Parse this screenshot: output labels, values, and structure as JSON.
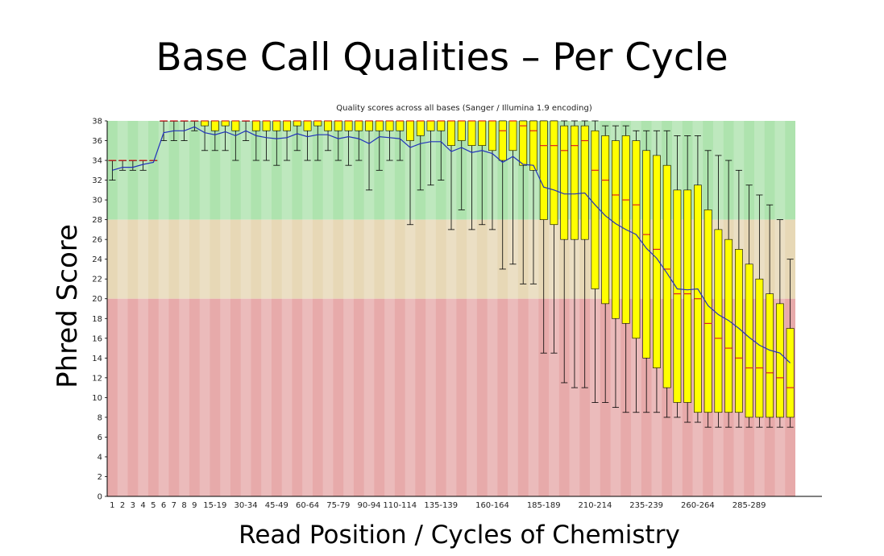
{
  "slide": {
    "title": "Base Call Qualities – Per Cycle",
    "y_axis_title": "Phred Score",
    "x_axis_title": "Read Position / Cycles of Chemistry"
  },
  "chart_data": {
    "type": "box",
    "title": "Quality scores across all bases (Sanger / Illumina 1.9 encoding)",
    "ylim": [
      0,
      38
    ],
    "y_ticks": [
      0,
      2,
      4,
      6,
      8,
      10,
      12,
      14,
      16,
      18,
      20,
      22,
      24,
      26,
      28,
      30,
      32,
      34,
      36,
      38
    ],
    "x_tick_labels": [
      "1",
      "2",
      "3",
      "4",
      "5",
      "6",
      "7",
      "8",
      "9",
      "15-19",
      "30-34",
      "45-49",
      "60-64",
      "75-79",
      "90-94",
      "110-114",
      "135-139",
      "160-164",
      "185-189",
      "210-214",
      "235-239",
      "260-264",
      "285-289"
    ],
    "x_tick_positions": [
      0,
      1,
      2,
      3,
      4,
      5,
      6,
      7,
      8,
      10,
      13,
      16,
      19,
      22,
      25,
      28,
      32,
      37,
      42,
      47,
      52,
      57,
      62
    ],
    "quality_bands": [
      {
        "from": 28,
        "to": 38,
        "color": "#aee3ae"
      },
      {
        "from": 20,
        "to": 28,
        "color": "#e7d8b6"
      },
      {
        "from": 0,
        "to": 20,
        "color": "#e7aaaa"
      }
    ],
    "colors": {
      "box": "#ffff00",
      "median": "#dd2222",
      "mean_line": "#2233bb",
      "whisker": "#000000"
    },
    "boxes": [
      {
        "low": 32,
        "q1": 34,
        "median": 34,
        "q3": 34,
        "high": 34,
        "mean": 33.0
      },
      {
        "low": 33,
        "q1": 34,
        "median": 34,
        "q3": 34,
        "high": 34,
        "mean": 33.3
      },
      {
        "low": 33,
        "q1": 34,
        "median": 34,
        "q3": 34,
        "high": 34,
        "mean": 33.3
      },
      {
        "low": 33,
        "q1": 34,
        "median": 34,
        "q3": 34,
        "high": 34,
        "mean": 33.6
      },
      {
        "low": 34,
        "q1": 34,
        "median": 34,
        "q3": 34,
        "high": 34,
        "mean": 33.8
      },
      {
        "low": 36,
        "q1": 38,
        "median": 38,
        "q3": 38,
        "high": 38,
        "mean": 36.8
      },
      {
        "low": 36,
        "q1": 38,
        "median": 38,
        "q3": 38,
        "high": 38,
        "mean": 37.0
      },
      {
        "low": 36,
        "q1": 38,
        "median": 38,
        "q3": 38,
        "high": 38,
        "mean": 37.0
      },
      {
        "low": 37,
        "q1": 38,
        "median": 38,
        "q3": 38,
        "high": 38,
        "mean": 37.4
      },
      {
        "low": 35,
        "q1": 37.5,
        "median": 38,
        "q3": 38,
        "high": 38,
        "mean": 36.8
      },
      {
        "low": 35,
        "q1": 37,
        "median": 38,
        "q3": 38,
        "high": 38,
        "mean": 36.6
      },
      {
        "low": 35,
        "q1": 37.5,
        "median": 38,
        "q3": 38,
        "high": 38,
        "mean": 36.9
      },
      {
        "low": 34,
        "q1": 37,
        "median": 38,
        "q3": 38,
        "high": 38,
        "mean": 36.5
      },
      {
        "low": 36,
        "q1": 38,
        "median": 38,
        "q3": 38,
        "high": 38,
        "mean": 37.0
      },
      {
        "low": 34,
        "q1": 37,
        "median": 38,
        "q3": 38,
        "high": 38,
        "mean": 36.5
      },
      {
        "low": 34,
        "q1": 37,
        "median": 38,
        "q3": 38,
        "high": 38,
        "mean": 36.3
      },
      {
        "low": 33.5,
        "q1": 37,
        "median": 38,
        "q3": 38,
        "high": 38,
        "mean": 36.2
      },
      {
        "low": 34,
        "q1": 37,
        "median": 38,
        "q3": 38,
        "high": 38,
        "mean": 36.3
      },
      {
        "low": 35,
        "q1": 37.5,
        "median": 38,
        "q3": 38,
        "high": 38,
        "mean": 36.7
      },
      {
        "low": 34,
        "q1": 37,
        "median": 38,
        "q3": 38,
        "high": 38,
        "mean": 36.4
      },
      {
        "low": 34,
        "q1": 37.5,
        "median": 38,
        "q3": 38,
        "high": 38,
        "mean": 36.6
      },
      {
        "low": 35,
        "q1": 37,
        "median": 38,
        "q3": 38,
        "high": 38,
        "mean": 36.6
      },
      {
        "low": 34,
        "q1": 37,
        "median": 38,
        "q3": 38,
        "high": 38,
        "mean": 36.2
      },
      {
        "low": 33.5,
        "q1": 37,
        "median": 38,
        "q3": 38,
        "high": 38,
        "mean": 36.4
      },
      {
        "low": 34,
        "q1": 37,
        "median": 38,
        "q3": 38,
        "high": 38,
        "mean": 36.2
      },
      {
        "low": 31,
        "q1": 37,
        "median": 38,
        "q3": 38,
        "high": 38,
        "mean": 35.7
      },
      {
        "low": 33,
        "q1": 37,
        "median": 38,
        "q3": 38,
        "high": 38,
        "mean": 36.4
      },
      {
        "low": 34,
        "q1": 37,
        "median": 38,
        "q3": 38,
        "high": 38,
        "mean": 36.3
      },
      {
        "low": 34,
        "q1": 37,
        "median": 38,
        "q3": 38,
        "high": 38,
        "mean": 36.2
      },
      {
        "low": 27.5,
        "q1": 36,
        "median": 38,
        "q3": 38,
        "high": 38,
        "mean": 35.3
      },
      {
        "low": 31,
        "q1": 36.5,
        "median": 38,
        "q3": 38,
        "high": 38,
        "mean": 35.7
      },
      {
        "low": 31.5,
        "q1": 37,
        "median": 38,
        "q3": 38,
        "high": 38,
        "mean": 35.9
      },
      {
        "low": 32,
        "q1": 37,
        "median": 38,
        "q3": 38,
        "high": 38,
        "mean": 35.9
      },
      {
        "low": 27,
        "q1": 35.5,
        "median": 38,
        "q3": 38,
        "high": 38,
        "mean": 34.9
      },
      {
        "low": 29,
        "q1": 36,
        "median": 38,
        "q3": 38,
        "high": 38,
        "mean": 35.3
      },
      {
        "low": 27,
        "q1": 35.5,
        "median": 38,
        "q3": 38,
        "high": 38,
        "mean": 34.8
      },
      {
        "low": 27.5,
        "q1": 35.5,
        "median": 38,
        "q3": 38,
        "high": 38,
        "mean": 35.0
      },
      {
        "low": 27,
        "q1": 35,
        "median": 38,
        "q3": 38,
        "high": 38,
        "mean": 34.7
      },
      {
        "low": 23,
        "q1": 34,
        "median": 37,
        "q3": 38,
        "high": 38,
        "mean": 33.8
      },
      {
        "low": 23.5,
        "q1": 35,
        "median": 38,
        "q3": 38,
        "high": 38,
        "mean": 34.4
      },
      {
        "low": 21.5,
        "q1": 33.5,
        "median": 37.5,
        "q3": 38,
        "high": 38,
        "mean": 33.6
      },
      {
        "low": 21.5,
        "q1": 33,
        "median": 37,
        "q3": 38,
        "high": 38,
        "mean": 33.5
      },
      {
        "low": 14.5,
        "q1": 28,
        "median": 35.5,
        "q3": 38,
        "high": 38,
        "mean": 31.3
      },
      {
        "low": 14.5,
        "q1": 27.5,
        "median": 35.5,
        "q3": 38,
        "high": 38,
        "mean": 31.0
      },
      {
        "low": 11.5,
        "q1": 26,
        "median": 35,
        "q3": 37.5,
        "high": 38,
        "mean": 30.6
      },
      {
        "low": 11,
        "q1": 26,
        "median": 35.5,
        "q3": 37.5,
        "high": 38,
        "mean": 30.6
      },
      {
        "low": 11,
        "q1": 26,
        "median": 36,
        "q3": 37.5,
        "high": 38,
        "mean": 30.7
      },
      {
        "low": 9.5,
        "q1": 21,
        "median": 33,
        "q3": 37,
        "high": 38,
        "mean": 29.5
      },
      {
        "low": 9.5,
        "q1": 19.5,
        "median": 32,
        "q3": 36.5,
        "high": 37.5,
        "mean": 28.4
      },
      {
        "low": 9,
        "q1": 18,
        "median": 30.5,
        "q3": 36,
        "high": 37.5,
        "mean": 27.6
      },
      {
        "low": 8.5,
        "q1": 17.5,
        "median": 30,
        "q3": 36.5,
        "high": 37.5,
        "mean": 27.0
      },
      {
        "low": 8.5,
        "q1": 16,
        "median": 29.5,
        "q3": 36,
        "high": 37,
        "mean": 26.5
      },
      {
        "low": 8.5,
        "q1": 14,
        "median": 26.5,
        "q3": 35,
        "high": 37,
        "mean": 25.1
      },
      {
        "low": 8.5,
        "q1": 13,
        "median": 25,
        "q3": 34.5,
        "high": 37,
        "mean": 24.1
      },
      {
        "low": 8,
        "q1": 11,
        "median": 23,
        "q3": 33.5,
        "high": 37,
        "mean": 22.6
      },
      {
        "low": 8,
        "q1": 9.5,
        "median": 20.5,
        "q3": 31,
        "high": 36.5,
        "mean": 21.0
      },
      {
        "low": 7.5,
        "q1": 9.5,
        "median": 20.5,
        "q3": 31,
        "high": 36.5,
        "mean": 20.9
      },
      {
        "low": 7.5,
        "q1": 8.5,
        "median": 20,
        "q3": 31.5,
        "high": 36.5,
        "mean": 21.0
      },
      {
        "low": 7,
        "q1": 8.5,
        "median": 17.5,
        "q3": 29,
        "high": 35,
        "mean": 19.3
      },
      {
        "low": 7,
        "q1": 8.5,
        "median": 16,
        "q3": 27,
        "high": 34.5,
        "mean": 18.4
      },
      {
        "low": 7,
        "q1": 8.5,
        "median": 15,
        "q3": 26,
        "high": 34,
        "mean": 17.8
      },
      {
        "low": 7,
        "q1": 8.5,
        "median": 14,
        "q3": 25,
        "high": 33,
        "mean": 17.0
      },
      {
        "low": 7,
        "q1": 8,
        "median": 13,
        "q3": 23.5,
        "high": 31.5,
        "mean": 16.1
      },
      {
        "low": 7,
        "q1": 8,
        "median": 13,
        "q3": 22,
        "high": 30.5,
        "mean": 15.3
      },
      {
        "low": 7,
        "q1": 8,
        "median": 12.5,
        "q3": 20.5,
        "high": 29.5,
        "mean": 14.8
      },
      {
        "low": 7,
        "q1": 8,
        "median": 12,
        "q3": 19.5,
        "high": 28,
        "mean": 14.5
      },
      {
        "low": 7,
        "q1": 8,
        "median": 11,
        "q3": 17,
        "high": 24,
        "mean": 13.5
      }
    ]
  }
}
